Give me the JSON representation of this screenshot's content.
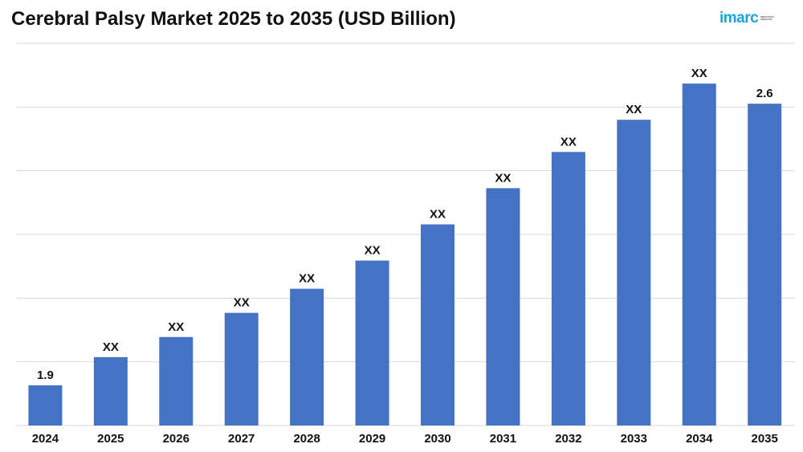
{
  "title": "Cerebral Palsy Market 2025 to 2035 (USD Billion)",
  "logo": {
    "text": "imarc",
    "tagline": "IMPACTFUL INSIGHTS",
    "color": "#1aa3e0",
    "accent": "#f39c1e"
  },
  "colors": {
    "bar": "#4472c4",
    "grid": "#d9d9d9",
    "text": "#111111"
  },
  "chart_data": {
    "type": "bar",
    "title": "Cerebral Palsy Market 2025 to 2035 (USD Billion)",
    "xlabel": "",
    "ylabel": "USD Billion",
    "grid": true,
    "ylim": [
      0,
      2.75
    ],
    "categories": [
      "2024",
      "2025",
      "2026",
      "2027",
      "2028",
      "2029",
      "2030",
      "2031",
      "2032",
      "2033",
      "2034",
      "2035"
    ],
    "values": [
      1.9,
      1.97,
      2.02,
      2.08,
      2.14,
      2.21,
      2.3,
      2.39,
      2.48,
      2.56,
      2.65,
      2.6
    ],
    "labels": [
      "1.9",
      "XX",
      "XX",
      "XX",
      "XX",
      "XX",
      "XX",
      "XX",
      "XX",
      "XX",
      "XX",
      "2.6"
    ]
  }
}
